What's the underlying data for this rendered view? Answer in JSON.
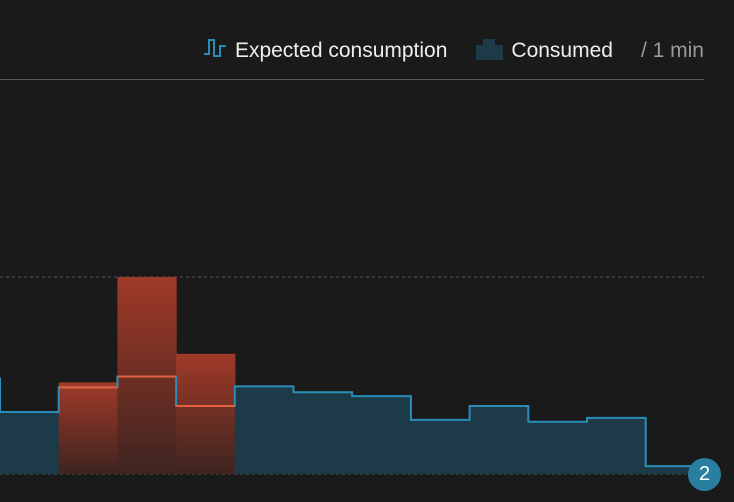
{
  "legend": {
    "expected_label": "Expected consumption",
    "consumed_label": "Consumed",
    "interval_label": "/ 1 min",
    "expected_icon": "step-line-icon",
    "consumed_icon": "step-area-icon"
  },
  "badge": {
    "count": "2"
  },
  "colors": {
    "background": "#1a1a1a",
    "expected_line": "#2a8db8",
    "consumed_fill": "#1d3a48",
    "over_fill_top": "#a03a28",
    "over_fill_bottom": "#3e2420",
    "over_line": "#e0603f",
    "grid": "#555555",
    "badge": "#2a7fa0"
  },
  "chart_data": {
    "type": "area",
    "step": true,
    "grid": true,
    "gridlines": [
      0,
      2
    ],
    "ylim": [
      0,
      2.9
    ],
    "x": [
      0,
      1,
      2,
      3,
      4,
      5,
      6,
      7,
      8,
      9,
      10,
      11
    ],
    "series": [
      {
        "name": "Expected consumption",
        "values": [
          0.63,
          0.88,
          0.99,
          0.69,
          0.89,
          0.83,
          0.79,
          0.55,
          0.69,
          0.53,
          0.57,
          0.08
        ]
      },
      {
        "name": "Consumed",
        "values": [
          0.63,
          0.93,
          2.0,
          1.22,
          0.89,
          0.83,
          0.79,
          0.55,
          0.69,
          0.53,
          0.57,
          0.08
        ]
      }
    ],
    "pre_value": 0.98
  }
}
